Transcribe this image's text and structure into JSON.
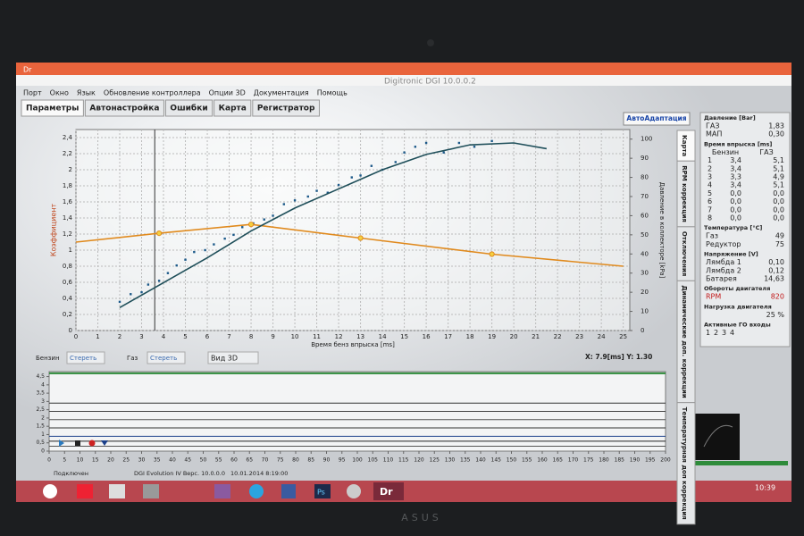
{
  "window": {
    "app_icon": "Dr",
    "title": "Digitronic DGI 10.0.0.2"
  },
  "menu": [
    "Порт",
    "Окно",
    "Язык",
    "Обновление контроллера",
    "Опции 3D",
    "Документация",
    "Помощь"
  ],
  "tabs": [
    "Параметры",
    "Автонастройка",
    "Ошибки",
    "Карта",
    "Регистратор"
  ],
  "auto_button": "АвтоАдаптация",
  "side_tabs": [
    "Карта",
    "RPM коррекция",
    "Отключения",
    "Динамические доп. коррекции",
    "Температурная доп коррекция"
  ],
  "main_chart": {
    "type": "line",
    "y_label": "Коэффициент",
    "y2_label": "Давление в коллекторе [kPa]",
    "x_label": "Время бенз впрыска [ms]",
    "grid": true,
    "xlim": [
      0,
      25.3
    ],
    "xticks": [
      0,
      1,
      2,
      3,
      4,
      5,
      6,
      7,
      8,
      9,
      10,
      11,
      12,
      13,
      14,
      15,
      16,
      17,
      18,
      19,
      20,
      21,
      22,
      23,
      24,
      25
    ],
    "ylim": [
      0,
      2.5
    ],
    "yticks": [
      0,
      {
        "value": 0.2,
        "label": "0,2"
      },
      {
        "value": 0.4,
        "label": "0,4"
      },
      {
        "value": 0.6,
        "label": "0,6"
      },
      {
        "value": 0.8,
        "label": "0,8"
      },
      1,
      {
        "value": 1.2,
        "label": "1,2"
      },
      {
        "value": 1.4,
        "label": "1,4"
      },
      {
        "value": 1.6,
        "label": "1,6"
      },
      {
        "value": 1.8,
        "label": "1,8"
      },
      2,
      {
        "value": 2.2,
        "label": "2,2"
      },
      {
        "value": 2.4,
        "label": "2,4"
      }
    ],
    "y2lim": [
      0,
      105
    ],
    "y2ticks": [
      0,
      10,
      20,
      30,
      40,
      50,
      60,
      70,
      80,
      90,
      100
    ],
    "series": [
      {
        "color": "#e08a1e",
        "x": [
          0,
          3.8,
          8,
          13,
          19,
          25
        ],
        "values": [
          1.1,
          1.21,
          1.32,
          1.15,
          0.95,
          0.8
        ],
        "markers": [
          3.8,
          8,
          13,
          19
        ]
      },
      {
        "color": "#1f4f5a",
        "axis": "y2",
        "x": [
          2,
          4,
          6,
          8,
          10,
          12,
          14,
          16,
          18,
          20,
          21.5
        ],
        "values": [
          12,
          25,
          38,
          52,
          64,
          74,
          84,
          92,
          97,
          98,
          95
        ]
      }
    ],
    "scatter": {
      "color": "#1d5a8a",
      "axis": "y2",
      "x": [
        2,
        2.5,
        3,
        3.3,
        3.8,
        4.2,
        4.6,
        5,
        5.4,
        5.9,
        6.3,
        6.8,
        7.2,
        7.6,
        8.1,
        8.6,
        9,
        9.5,
        10,
        10.6,
        11,
        11.5,
        12,
        12.6,
        13,
        13.5,
        14,
        14.6,
        15,
        15.5,
        16,
        16.8,
        17.5,
        18.2,
        19
      ],
      "values": [
        15,
        19,
        20,
        24,
        26,
        30,
        34,
        37,
        41,
        42,
        45,
        48,
        50,
        54,
        56,
        58,
        60,
        66,
        68,
        70,
        73,
        72,
        76,
        80,
        81,
        86,
        84,
        88,
        93,
        96,
        98,
        93,
        98,
        96,
        99
      ]
    }
  },
  "controls": {
    "petrol": "Бензин",
    "clear_petrol": "Стереть",
    "gas": "Газ",
    "clear_gas": "Стереть",
    "view3d": "Вид 3D",
    "cursor": "X: 7.9[ms] Y: 1.30"
  },
  "log_chart": {
    "ylim": [
      0,
      4.8
    ],
    "yticks": [
      0,
      {
        "value": 0.5,
        "label": "0,5"
      },
      1,
      {
        "value": 1.5,
        "label": "1,5"
      },
      2,
      {
        "value": 2.5,
        "label": "2,5"
      },
      3,
      {
        "value": 3.5,
        "label": "3,5"
      },
      4,
      {
        "value": 4.5,
        "label": "4,5"
      }
    ],
    "xlim": [
      0,
      200
    ],
    "xticks": [
      0,
      5,
      10,
      15,
      20,
      25,
      30,
      35,
      40,
      45,
      50,
      55,
      60,
      65,
      70,
      75,
      80,
      85,
      90,
      95,
      100,
      105,
      110,
      115,
      120,
      125,
      130,
      135,
      140,
      145,
      150,
      155,
      160,
      165,
      170,
      175,
      180,
      185,
      190,
      195,
      200
    ],
    "traces": [
      {
        "color": "#2e8b3a",
        "level": 4.7
      },
      {
        "color": "#333333",
        "level": 2.9
      },
      {
        "color": "#444444",
        "level": 2.4
      },
      {
        "color": "#555555",
        "level": 1.9
      },
      {
        "color": "#333333",
        "level": 1.4
      },
      {
        "color": "#1a3f8a",
        "level": 0.9
      },
      {
        "color": "#222222",
        "level": 0.6
      },
      {
        "color": "#555555",
        "level": 0.3
      }
    ]
  },
  "panel": [
    {
      "title": "Давление [Bar]",
      "rows": [
        [
          "ГАЗ",
          "1,83"
        ],
        [
          "МАП",
          "0,30"
        ]
      ]
    },
    {
      "title": "Время впрыска [ms]",
      "rows": [
        [
          "",
          "Бензин",
          "ГАЗ"
        ],
        [
          "1",
          "3,4",
          "5,1"
        ],
        [
          "2",
          "3,4",
          "5,1"
        ],
        [
          "3",
          "3,3",
          "4,9"
        ],
        [
          "4",
          "3,4",
          "5,1"
        ],
        [
          "5",
          "0,0",
          "0,0"
        ],
        [
          "6",
          "0,0",
          "0,0"
        ],
        [
          "7",
          "0,0",
          "0,0"
        ],
        [
          "8",
          "0,0",
          "0,0"
        ]
      ]
    },
    {
      "title": "Температура [°C]",
      "rows": [
        [
          "Газ",
          "49"
        ],
        [
          "Редуктор",
          "75"
        ]
      ]
    },
    {
      "title": "Напряжение [V]",
      "rows": [
        [
          "Лямбда 1",
          "0,10"
        ],
        [
          "Лямбда 2",
          "0,12"
        ],
        [
          "Батарея",
          "14,63"
        ]
      ]
    },
    {
      "title": "Обороты двигателя",
      "rows": [
        [
          "RPM",
          "820"
        ]
      ]
    },
    {
      "title": "Нагрузка двигателя",
      "rows": [
        [
          "",
          "25 %"
        ]
      ]
    },
    {
      "title": "Активные ГО входы",
      "rows": [
        [
          "1",
          "2",
          "3",
          "4"
        ]
      ]
    }
  ],
  "status": [
    "Подключен",
    "DGI Evolution IV  Верс. 10.0.0.0",
    "10.01.2014 8:19:00"
  ],
  "taskbar": {
    "photoshop": "Ps",
    "app": "Dr",
    "time": "10:39"
  },
  "bezel": {
    "brand": "ASUS"
  }
}
